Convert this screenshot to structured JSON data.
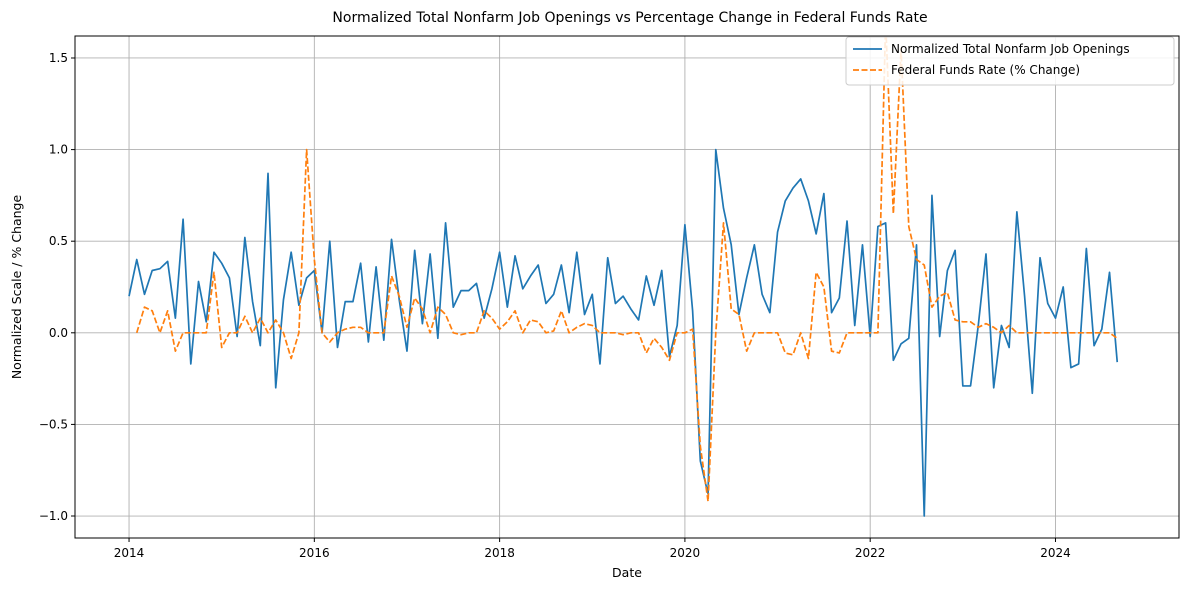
{
  "chart_data": {
    "type": "line",
    "title": "Normalized Total Nonfarm Job Openings vs Percentage Change in Federal Funds Rate",
    "xlabel": "Date",
    "ylabel": "Normalized Scale / % Change",
    "xlim": [
      "2013-06",
      "2025-05"
    ],
    "ylim": [
      -1.12,
      1.62
    ],
    "x_ticks": [
      "2014",
      "2016",
      "2018",
      "2020",
      "2022",
      "2024"
    ],
    "y_ticks": [
      "−1.0",
      "−0.5",
      "0.0",
      "0.5",
      "1.0",
      "1.5"
    ],
    "grid": true,
    "legend_position": "top-right",
    "series": [
      {
        "name": "Normalized Total Nonfarm Job Openings",
        "color": "#1f77b4",
        "style": "solid",
        "start": "2014-01",
        "values": [
          0.2,
          0.4,
          0.21,
          0.34,
          0.35,
          0.39,
          0.08,
          0.62,
          -0.17,
          0.28,
          0.06,
          0.44,
          0.38,
          0.3,
          -0.02,
          0.52,
          0.17,
          -0.07,
          0.87,
          -0.3,
          0.18,
          0.44,
          0.15,
          0.3,
          0.34,
          0.0,
          0.5,
          -0.08,
          0.17,
          0.17,
          0.38,
          -0.05,
          0.36,
          -0.04,
          0.51,
          0.18,
          -0.1,
          0.45,
          0.05,
          0.43,
          -0.03,
          0.6,
          0.14,
          0.23,
          0.23,
          0.27,
          0.08,
          0.24,
          0.44,
          0.14,
          0.42,
          0.24,
          0.31,
          0.37,
          0.16,
          0.21,
          0.37,
          0.11,
          0.44,
          0.1,
          0.21,
          -0.17,
          0.41,
          0.16,
          0.2,
          0.13,
          0.07,
          0.31,
          0.15,
          0.34,
          -0.13,
          0.04,
          0.59,
          0.12,
          -0.7,
          -0.88,
          1.0,
          0.68,
          0.48,
          0.1,
          0.3,
          0.48,
          0.21,
          0.11,
          0.55,
          0.72,
          0.79,
          0.84,
          0.72,
          0.54,
          0.76,
          0.11,
          0.19,
          0.61,
          0.04,
          0.48,
          -0.02,
          0.58,
          0.6,
          -0.15,
          -0.06,
          -0.03,
          0.48,
          -1.0,
          0.75,
          -0.02,
          0.34,
          0.45,
          -0.29,
          -0.29,
          0.04,
          0.43,
          -0.3,
          0.04,
          -0.08,
          0.66,
          0.2,
          -0.33,
          0.41,
          0.16,
          0.08,
          0.25,
          -0.19,
          -0.17,
          0.46,
          -0.07,
          0.02,
          0.33,
          -0.16
        ]
      },
      {
        "name": "Federal Funds Rate (% Change)",
        "color": "#ff7f0e",
        "style": "dashed",
        "start": "2014-02",
        "values": [
          0.0,
          0.14,
          0.12,
          0.0,
          0.12,
          -0.1,
          0.0,
          0.0,
          0.0,
          0.0,
          0.33,
          -0.08,
          0.0,
          0.0,
          0.09,
          0.0,
          0.08,
          0.0,
          0.07,
          0.0,
          -0.14,
          0.0,
          1.0,
          0.4,
          0.0,
          -0.05,
          0.0,
          0.02,
          0.03,
          0.03,
          0.0,
          0.0,
          0.0,
          0.31,
          0.2,
          0.03,
          0.19,
          0.13,
          0.0,
          0.14,
          0.1,
          0.0,
          -0.01,
          0.0,
          0.0,
          0.12,
          0.08,
          0.02,
          0.06,
          0.12,
          0.0,
          0.07,
          0.06,
          0.0,
          0.01,
          0.12,
          0.0,
          0.03,
          0.05,
          0.04,
          0.0,
          0.0,
          0.0,
          -0.01,
          0.0,
          0.0,
          -0.11,
          -0.03,
          -0.08,
          -0.15,
          0.0,
          0.0,
          0.02,
          -0.62,
          -0.92,
          0.0,
          0.6,
          0.13,
          0.1,
          -0.1,
          0.0,
          0.0,
          0.0,
          0.0,
          -0.11,
          -0.12,
          0.0,
          -0.14,
          0.33,
          0.25,
          -0.1,
          -0.11,
          0.0,
          0.0,
          0.0,
          0.0,
          0.0,
          1.7,
          0.65,
          1.55,
          0.58,
          0.4,
          0.37,
          0.14,
          0.2,
          0.22,
          0.07,
          0.06,
          0.06,
          0.03,
          0.05,
          0.03,
          0.0,
          0.04,
          0.0,
          0.0,
          0.0,
          0.0,
          0.0,
          0.0,
          0.0,
          0.0,
          0.0,
          0.0,
          0.0,
          0.0,
          0.0,
          -0.03
        ]
      }
    ]
  }
}
